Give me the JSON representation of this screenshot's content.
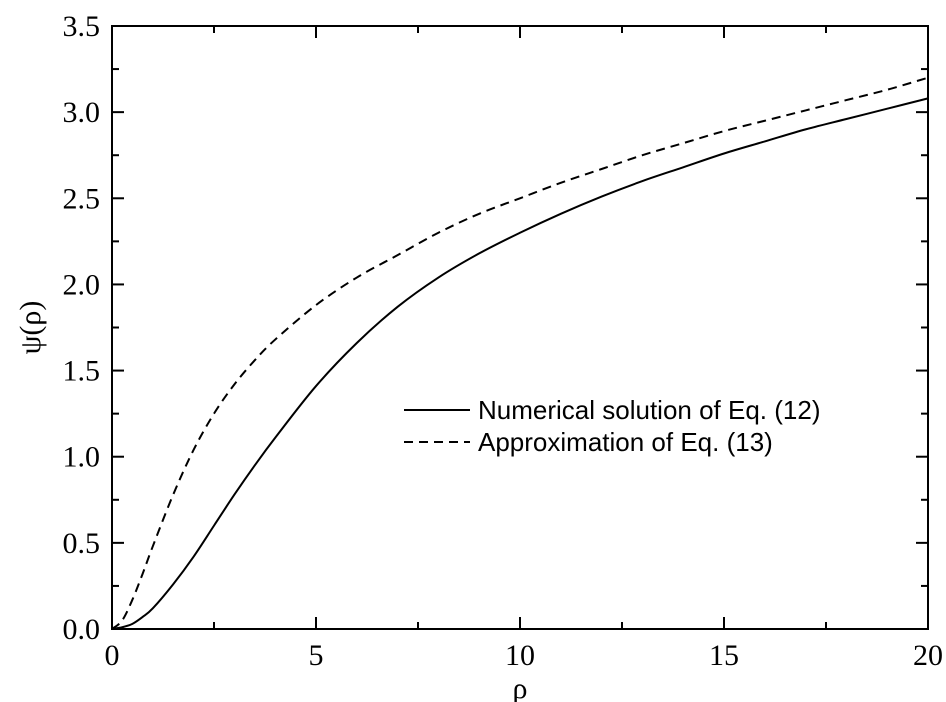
{
  "chart_data": {
    "type": "line",
    "xlabel": "ρ",
    "ylabel": "ψ(ρ)",
    "xlim": [
      0,
      20
    ],
    "ylim": [
      0,
      3.5
    ],
    "x_ticks": [
      "0",
      "5",
      "10",
      "15",
      "20"
    ],
    "y_ticks": [
      "0.0",
      "0.5",
      "1.0",
      "1.5",
      "2.0",
      "2.5",
      "3.0",
      "3.5"
    ],
    "grid": false,
    "legend_position": "center-right",
    "series": [
      {
        "name": "Numerical solution of Eq. (12)",
        "style": "solid",
        "color": "#000000",
        "x": [
          0,
          0.25,
          0.5,
          0.75,
          1,
          1.5,
          2,
          2.5,
          3,
          3.5,
          4,
          5,
          6,
          7,
          8,
          9,
          10,
          11,
          12,
          13,
          14,
          15,
          16,
          17,
          18,
          19,
          20
        ],
        "y": [
          0,
          0.01,
          0.03,
          0.07,
          0.12,
          0.26,
          0.42,
          0.6,
          0.78,
          0.95,
          1.11,
          1.41,
          1.66,
          1.87,
          2.04,
          2.18,
          2.3,
          2.41,
          2.51,
          2.6,
          2.68,
          2.76,
          2.83,
          2.9,
          2.96,
          3.02,
          3.08
        ]
      },
      {
        "name": "Approximation of Eq. (13)",
        "style": "dashed",
        "color": "#000000",
        "x": [
          0,
          0.25,
          0.5,
          0.75,
          1,
          1.5,
          2,
          2.5,
          3,
          3.5,
          4,
          5,
          6,
          7,
          8,
          9,
          10,
          11,
          12,
          13,
          14,
          15,
          16,
          17,
          18,
          19,
          20
        ],
        "y": [
          0,
          0.05,
          0.17,
          0.32,
          0.48,
          0.78,
          1.04,
          1.25,
          1.42,
          1.56,
          1.68,
          1.88,
          2.04,
          2.17,
          2.3,
          2.41,
          2.5,
          2.59,
          2.67,
          2.75,
          2.82,
          2.89,
          2.95,
          3.01,
          3.07,
          3.13,
          3.2
        ]
      }
    ]
  }
}
